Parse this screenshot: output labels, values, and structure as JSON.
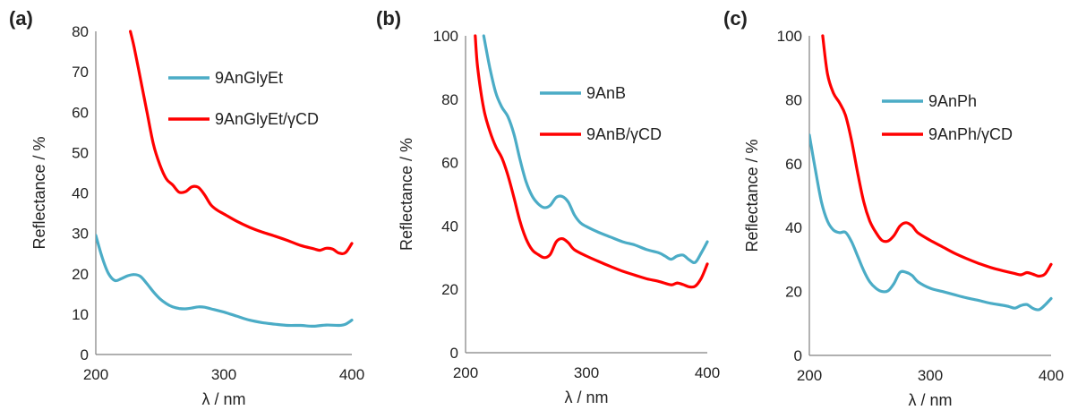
{
  "chart_data": [
    {
      "type": "line",
      "panel": "(a)",
      "xlabel": "λ / nm",
      "ylabel": "Reflectance / %",
      "xlim": [
        200,
        400
      ],
      "ylim": [
        0,
        80
      ],
      "xticks": [
        200,
        300,
        400
      ],
      "yticks": [
        0,
        10,
        20,
        30,
        40,
        50,
        60,
        70,
        80
      ],
      "grid": false,
      "legend_position": "top-right",
      "series": [
        {
          "name": "9AnGlyEt",
          "color": "#4BACC6",
          "x": [
            200,
            205,
            210,
            215,
            220,
            225,
            230,
            235,
            240,
            245,
            250,
            255,
            260,
            265,
            270,
            275,
            280,
            285,
            290,
            300,
            310,
            320,
            330,
            340,
            350,
            360,
            370,
            380,
            390,
            395,
            400
          ],
          "y": [
            29.5,
            24,
            20,
            18.3,
            18.8,
            19.5,
            19.8,
            19.3,
            17.5,
            15.5,
            13.8,
            12.6,
            11.8,
            11.4,
            11.3,
            11.5,
            11.8,
            11.7,
            11.3,
            10.5,
            9.5,
            8.5,
            7.9,
            7.5,
            7.2,
            7.2,
            7.0,
            7.3,
            7.2,
            7.5,
            8.5
          ]
        },
        {
          "name": "9AnGlyEt/γCD",
          "color": "#FF0000",
          "x": [
            227,
            230,
            235,
            240,
            245,
            250,
            255,
            260,
            265,
            270,
            275,
            280,
            285,
            290,
            295,
            300,
            310,
            320,
            330,
            340,
            350,
            360,
            370,
            375,
            380,
            385,
            390,
            395,
            400
          ],
          "y": [
            80,
            76,
            68,
            60,
            52,
            47,
            43.5,
            42,
            40.2,
            40.3,
            41.5,
            41.4,
            39.5,
            37,
            35.7,
            34.8,
            33,
            31.5,
            30.3,
            29.3,
            28.2,
            27,
            26.2,
            25.8,
            26.3,
            26.1,
            25.1,
            25.2,
            27.5
          ]
        }
      ]
    },
    {
      "type": "line",
      "panel": "(b)",
      "xlabel": "λ / nm",
      "ylabel": "Reflectance / %",
      "xlim": [
        200,
        400
      ],
      "ylim": [
        0,
        100
      ],
      "xticks": [
        200,
        300,
        400
      ],
      "yticks": [
        0,
        20,
        40,
        60,
        80,
        100
      ],
      "grid": false,
      "legend_position": "top-right",
      "series": [
        {
          "name": "9AnB",
          "color": "#4BACC6",
          "x": [
            215,
            220,
            225,
            230,
            235,
            240,
            245,
            250,
            255,
            260,
            265,
            270,
            275,
            280,
            285,
            290,
            295,
            300,
            310,
            320,
            330,
            340,
            350,
            360,
            365,
            370,
            375,
            380,
            385,
            390,
            395,
            400
          ],
          "y": [
            100,
            90,
            82,
            77.5,
            74.5,
            69,
            61,
            54,
            49.5,
            47,
            45.8,
            46.5,
            49,
            49.3,
            47.5,
            43.5,
            41,
            39.8,
            38,
            36.5,
            35,
            34,
            32.5,
            31.5,
            30.5,
            29.5,
            30.5,
            30.8,
            29.3,
            28.5,
            31.5,
            35
          ]
        },
        {
          "name": "9AnB/γCD",
          "color": "#FF0000",
          "x": [
            208,
            210,
            215,
            220,
            225,
            230,
            235,
            240,
            245,
            250,
            255,
            260,
            265,
            270,
            275,
            280,
            285,
            290,
            300,
            310,
            320,
            330,
            340,
            350,
            360,
            370,
            375,
            380,
            385,
            390,
            395,
            400
          ],
          "y": [
            100,
            90,
            77,
            70,
            65,
            61.5,
            56,
            49,
            41.5,
            36,
            32.5,
            31,
            30,
            31,
            35,
            36,
            34.7,
            32.5,
            30.5,
            28.8,
            27.2,
            25.7,
            24.5,
            23.3,
            22.5,
            21.4,
            22,
            21.5,
            20.8,
            21,
            23.5,
            28
          ]
        }
      ]
    },
    {
      "type": "line",
      "panel": "(c)",
      "xlabel": "λ / nm",
      "ylabel": "Reflectance / %",
      "xlim": [
        200,
        400
      ],
      "ylim": [
        0,
        100
      ],
      "xticks": [
        200,
        300,
        400
      ],
      "yticks": [
        0,
        20,
        40,
        60,
        80,
        100
      ],
      "grid": false,
      "legend_position": "top-right",
      "series": [
        {
          "name": "9AnPh",
          "color": "#4BACC6",
          "x": [
            200,
            205,
            210,
            215,
            220,
            225,
            230,
            235,
            240,
            245,
            250,
            255,
            260,
            265,
            270,
            275,
            280,
            285,
            290,
            300,
            310,
            320,
            330,
            340,
            350,
            360,
            365,
            370,
            375,
            380,
            385,
            390,
            395,
            400
          ],
          "y": [
            69,
            58,
            48,
            42,
            39.2,
            38.4,
            38.5,
            35.5,
            31,
            26.5,
            23,
            21,
            20,
            20.2,
            22.5,
            26,
            26,
            25,
            23,
            21,
            20,
            19,
            18,
            17.2,
            16.3,
            15.7,
            15.3,
            14.8,
            15.6,
            15.9,
            14.7,
            14.3,
            15.8,
            17.8
          ]
        },
        {
          "name": "9AnPh/γCD",
          "color": "#FF0000",
          "x": [
            211,
            215,
            220,
            225,
            230,
            235,
            240,
            245,
            250,
            255,
            260,
            265,
            270,
            275,
            280,
            285,
            290,
            300,
            310,
            320,
            330,
            340,
            350,
            360,
            370,
            375,
            380,
            385,
            390,
            395,
            400
          ],
          "y": [
            100,
            88,
            82,
            79,
            75,
            67,
            57,
            48,
            42,
            38.5,
            36,
            35.8,
            37.5,
            40.5,
            41.5,
            40.5,
            38.3,
            36,
            34,
            32,
            30.3,
            28.8,
            27.5,
            26.5,
            25.6,
            25.2,
            25.9,
            25.4,
            24.8,
            25.5,
            28.5
          ]
        }
      ]
    }
  ]
}
